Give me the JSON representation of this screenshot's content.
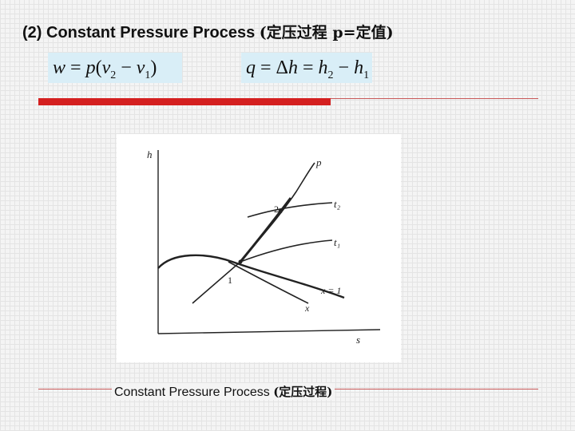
{
  "slide": {
    "title_prefix": "(2) Constant Pressure Process ",
    "title_cjk": "(定压过程 p=定值)",
    "caption_prefix": "Constant Pressure Process ",
    "caption_cjk": "(定压过程)"
  },
  "formulas": {
    "work": {
      "lhs": "w",
      "eq": " = ",
      "p": "p",
      "open": "(",
      "v": "v",
      "sub2": "2",
      "minus": " − ",
      "v_b": "v",
      "sub1": "1",
      "close": ")"
    },
    "heat": {
      "lhs": "q",
      "eq": " = Δ",
      "h": "h",
      "eq2": " = ",
      "h2": "h",
      "sub2": "2",
      "minus": " − ",
      "h1": "h",
      "sub1": "1"
    }
  },
  "diagram": {
    "axis_y_label": "h",
    "axis_x_label": "s",
    "curve_p_label": "p",
    "curve_t2_label": "t₂",
    "curve_t1_label": "t₁",
    "curve_x1_label": "x = 1",
    "curve_x_label": "x",
    "point_1_label": "1",
    "point_2_label": "2"
  },
  "colors": {
    "accent_red": "#d42020",
    "formula_bg": "#d9eef7",
    "ink": "#111111"
  }
}
